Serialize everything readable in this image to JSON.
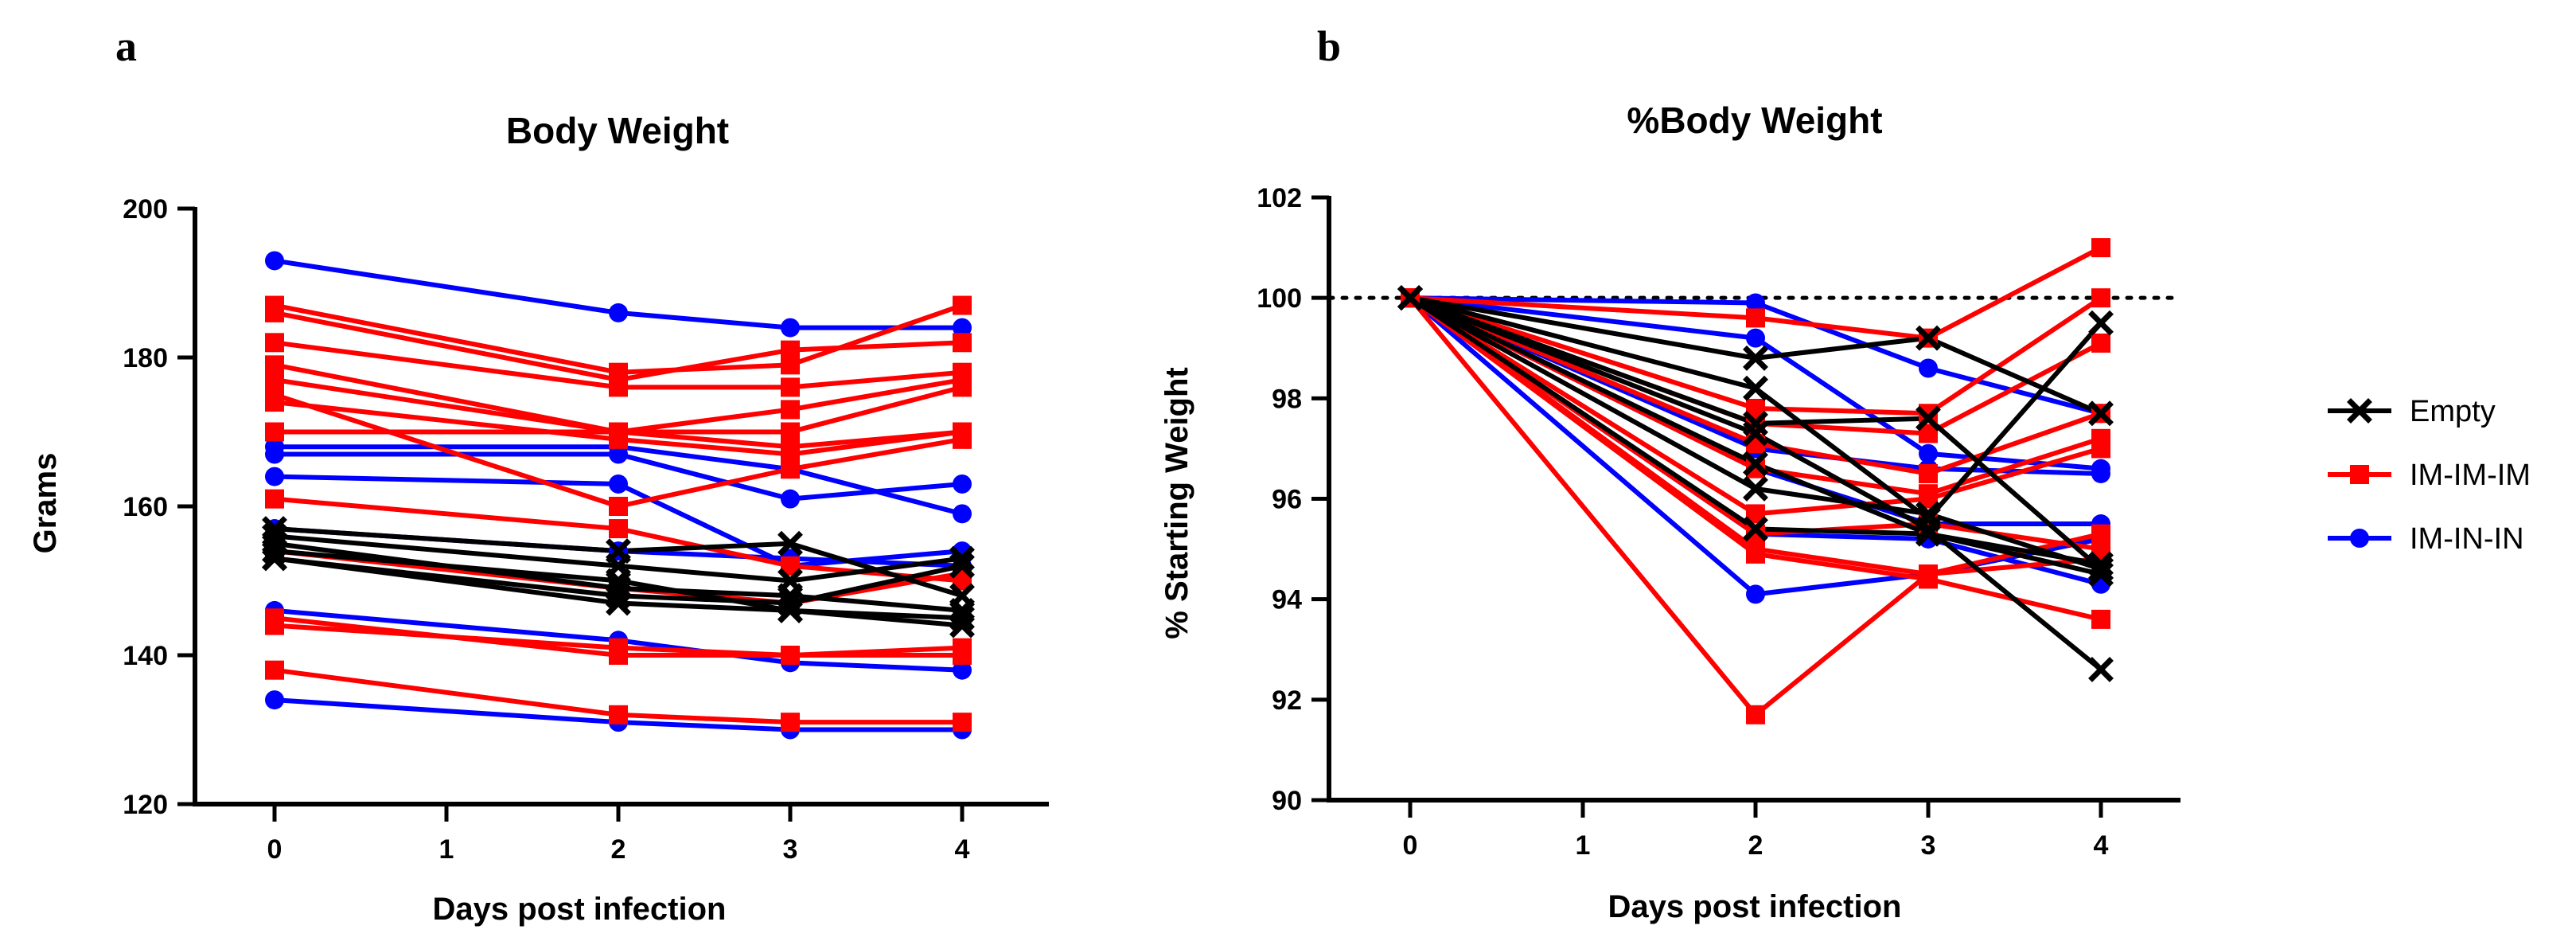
{
  "colors": {
    "Empty": "#000000",
    "IM-IM-IM": "#ff0000",
    "IM-IN-IN": "#0000ff"
  },
  "legend": [
    {
      "name": "Empty",
      "marker": "x",
      "color": "#000000"
    },
    {
      "name": "IM-IM-IM",
      "marker": "square",
      "color": "#ff0000"
    },
    {
      "name": "IM-IN-IN",
      "marker": "circle",
      "color": "#0000ff"
    }
  ],
  "chart_data": [
    {
      "panel": "a",
      "type": "line",
      "title": "Body Weight",
      "xlabel": "Days post infection",
      "ylabel": "Grams",
      "xlim": [
        -0.5,
        4.5
      ],
      "ylim": [
        120,
        200
      ],
      "xticks": [
        0,
        1,
        2,
        3,
        4
      ],
      "yticks": [
        120,
        140,
        160,
        180,
        200
      ],
      "x": [
        0,
        2,
        3,
        4
      ],
      "grid": false,
      "series": [
        {
          "group": "Empty",
          "values": [
            157,
            154,
            155,
            148
          ]
        },
        {
          "group": "Empty",
          "values": [
            156,
            152,
            150,
            153
          ]
        },
        {
          "group": "Empty",
          "values": [
            155,
            149,
            148,
            146
          ]
        },
        {
          "group": "Empty",
          "values": [
            154,
            150,
            146,
            145
          ]
        },
        {
          "group": "Empty",
          "values": [
            153,
            148,
            147,
            152
          ]
        },
        {
          "group": "Empty",
          "values": [
            153,
            147,
            146,
            144
          ]
        },
        {
          "group": "IM-IM-IM",
          "values": [
            187,
            178,
            179,
            187
          ]
        },
        {
          "group": "IM-IM-IM",
          "values": [
            186,
            177,
            181,
            182
          ]
        },
        {
          "group": "IM-IM-IM",
          "values": [
            182,
            176,
            176,
            178
          ]
        },
        {
          "group": "IM-IM-IM",
          "values": [
            179,
            170,
            173,
            177
          ]
        },
        {
          "group": "IM-IM-IM",
          "values": [
            177,
            170,
            170,
            176
          ]
        },
        {
          "group": "IM-IM-IM",
          "values": [
            174,
            169,
            167,
            170
          ]
        },
        {
          "group": "IM-IM-IM",
          "values": [
            175,
            160,
            165,
            169
          ]
        },
        {
          "group": "IM-IM-IM",
          "values": [
            170,
            170,
            168,
            170
          ]
        },
        {
          "group": "IM-IM-IM",
          "values": [
            161,
            157,
            152,
            150
          ]
        },
        {
          "group": "IM-IM-IM",
          "values": [
            154,
            149,
            147,
            151
          ]
        },
        {
          "group": "IM-IM-IM",
          "values": [
            145,
            140,
            140,
            140
          ]
        },
        {
          "group": "IM-IM-IM",
          "values": [
            144,
            141,
            140,
            141
          ]
        },
        {
          "group": "IM-IM-IM",
          "values": [
            138,
            132,
            131,
            131
          ]
        },
        {
          "group": "IM-IN-IN",
          "values": [
            193,
            186,
            184,
            184
          ]
        },
        {
          "group": "IM-IN-IN",
          "values": [
            168,
            168,
            165,
            159
          ]
        },
        {
          "group": "IM-IN-IN",
          "values": [
            167,
            167,
            161,
            163
          ]
        },
        {
          "group": "IM-IN-IN",
          "values": [
            164,
            163,
            152,
            154
          ]
        },
        {
          "group": "IM-IN-IN",
          "values": [
            157,
            154,
            153,
            152
          ]
        },
        {
          "group": "IM-IN-IN",
          "values": [
            146,
            142,
            139,
            138
          ]
        },
        {
          "group": "IM-IN-IN",
          "values": [
            134,
            131,
            130,
            130
          ]
        }
      ]
    },
    {
      "panel": "b",
      "type": "line",
      "title": "%Body Weight",
      "xlabel": "Days post infection",
      "ylabel": "% Starting Weight",
      "xlim": [
        -0.5,
        4.5
      ],
      "ylim": [
        90,
        102
      ],
      "xticks": [
        0,
        1,
        2,
        3,
        4
      ],
      "yticks": [
        90,
        92,
        94,
        96,
        98,
        100,
        102
      ],
      "x": [
        0,
        2,
        3,
        4
      ],
      "reference_line": {
        "y": 100,
        "style": "dotted"
      },
      "grid": false,
      "legend_position": "right",
      "series": [
        {
          "group": "Empty",
          "values": [
            100,
            98.8,
            99.2,
            97.7
          ]
        },
        {
          "group": "Empty",
          "values": [
            100,
            98.2,
            95.6,
            99.5
          ]
        },
        {
          "group": "Empty",
          "values": [
            100,
            97.5,
            97.6,
            94.6
          ]
        },
        {
          "group": "Empty",
          "values": [
            100,
            97.3,
            95.4,
            92.6
          ]
        },
        {
          "group": "Empty",
          "values": [
            100,
            96.7,
            95.3,
            94.5
          ]
        },
        {
          "group": "Empty",
          "values": [
            100,
            96.2,
            95.7,
            94.6
          ]
        },
        {
          "group": "Empty",
          "values": [
            100,
            95.4,
            95.3,
            94.7
          ]
        },
        {
          "group": "IM-IM-IM",
          "values": [
            100,
            99.6,
            99.2,
            101.0
          ]
        },
        {
          "group": "IM-IM-IM",
          "values": [
            100,
            97.8,
            97.7,
            100.0
          ]
        },
        {
          "group": "IM-IM-IM",
          "values": [
            100,
            97.5,
            97.3,
            99.1
          ]
        },
        {
          "group": "IM-IM-IM",
          "values": [
            100,
            97.1,
            96.5,
            97.7
          ]
        },
        {
          "group": "IM-IM-IM",
          "values": [
            100,
            96.6,
            96.1,
            97.2
          ]
        },
        {
          "group": "IM-IM-IM",
          "values": [
            100,
            95.7,
            96.0,
            97.0
          ]
        },
        {
          "group": "IM-IM-IM",
          "values": [
            100,
            95.3,
            95.5,
            95.0
          ]
        },
        {
          "group": "IM-IM-IM",
          "values": [
            100,
            95.0,
            94.5,
            95.3
          ]
        },
        {
          "group": "IM-IM-IM",
          "values": [
            100,
            94.9,
            94.4,
            93.6
          ]
        },
        {
          "group": "IM-IM-IM",
          "values": [
            100,
            91.7,
            94.5,
            94.8
          ]
        },
        {
          "group": "IM-IN-IN",
          "values": [
            100,
            99.9,
            98.6,
            97.7
          ]
        },
        {
          "group": "IM-IN-IN",
          "values": [
            100,
            99.2,
            96.9,
            96.6
          ]
        },
        {
          "group": "IM-IN-IN",
          "values": [
            100,
            97.0,
            96.6,
            96.5
          ]
        },
        {
          "group": "IM-IN-IN",
          "values": [
            100,
            96.6,
            95.5,
            95.5
          ]
        },
        {
          "group": "IM-IN-IN",
          "values": [
            100,
            95.3,
            95.2,
            94.3
          ]
        },
        {
          "group": "IM-IN-IN",
          "values": [
            100,
            94.1,
            94.5,
            95.2
          ]
        }
      ]
    }
  ]
}
